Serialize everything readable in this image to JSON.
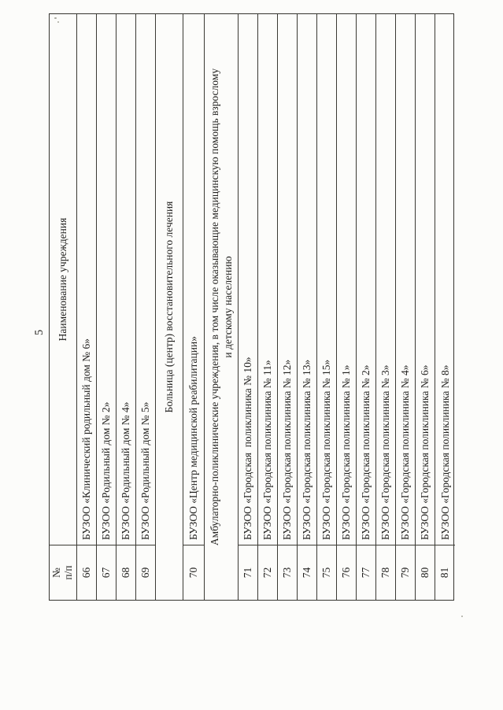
{
  "page": {
    "number": "5"
  },
  "table": {
    "header": {
      "num_line1": "№",
      "num_line2": "п/п",
      "name": "Наименование учреждения"
    },
    "rows": [
      {
        "num": "66",
        "name": "БУЗОО «Клинический родильный дом № 6»"
      },
      {
        "num": "67",
        "name": "БУЗОО «Родильный дом № 2»"
      },
      {
        "num": "68",
        "name": "БУЗОО «Родильный дом № 4»"
      },
      {
        "num": "69",
        "name": "БУЗОО «Родильный дом № 5»"
      },
      {
        "section_lines": [
          "Больница (центр) восстановительного лечения"
        ]
      },
      {
        "num": "70",
        "name": "БУЗОО «Центр медицинской реабилитации»"
      },
      {
        "section_lines": [
          "Амбулаторно-поликлинические учреждения, в том числе оказывающие медицинскую помощь взрослому",
          "и детскому населению"
        ]
      },
      {
        "num": "71",
        "name": "БУЗОО «Городская  поликлиника № 10»"
      },
      {
        "num": "72",
        "name": "БУЗОО «Городская поликлиника № 11»"
      },
      {
        "num": "73",
        "name": "БУЗОО «Городская поликлиника № 12»"
      },
      {
        "num": "74",
        "name": "БУЗОО «Городская поликлиника № 13»"
      },
      {
        "num": "75",
        "name": "БУЗОО «Городская поликлиника № 15»"
      },
      {
        "num": "76",
        "name": "БУЗОО «Городская поликлиника № 1»"
      },
      {
        "num": "77",
        "name": "БУЗОО «Городская поликлиника № 2»"
      },
      {
        "num": "78",
        "name": "БУЗОО «Городская поликлиника № 3»"
      },
      {
        "num": "79",
        "name": "БУЗОО «Городская поликлиника № 4»"
      },
      {
        "num": "80",
        "name": "БУЗОО «Городская поликлиника № 6»"
      },
      {
        "num": "81",
        "name": "БУЗОО «Городская поликлиника № 8»"
      }
    ]
  }
}
